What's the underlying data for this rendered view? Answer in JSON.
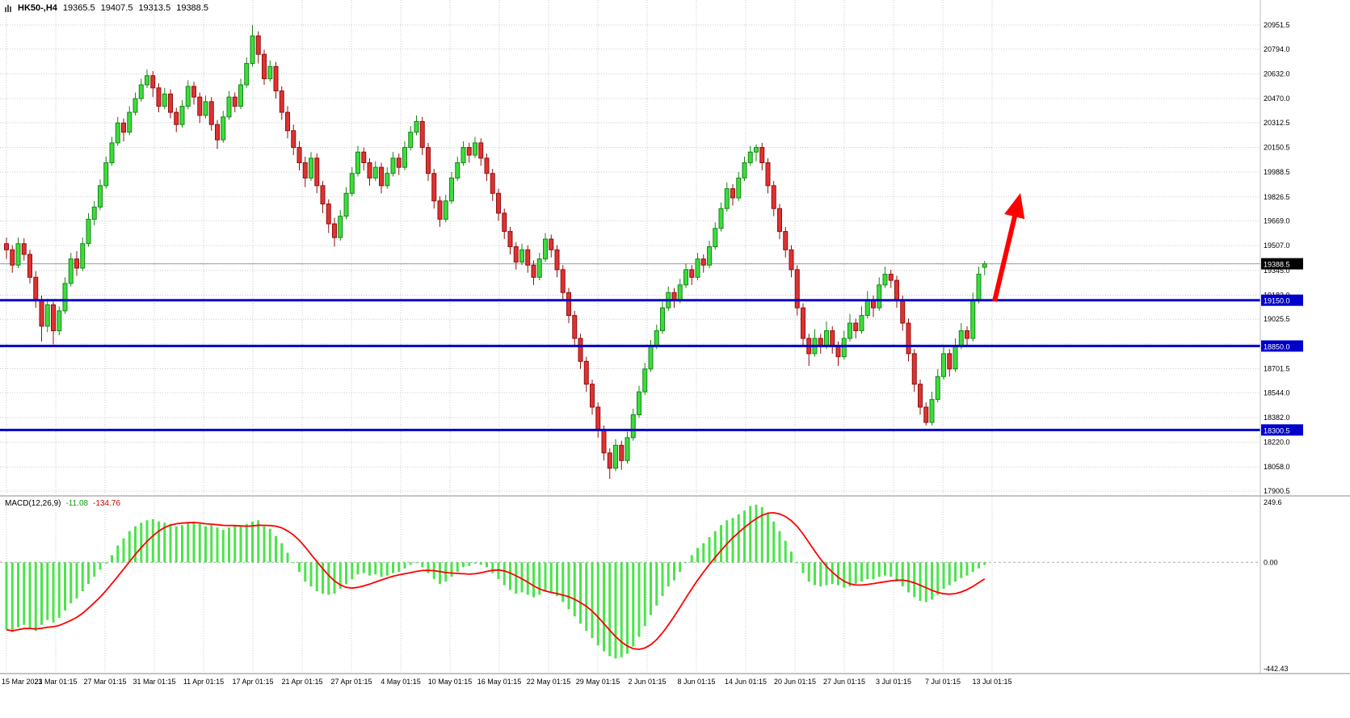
{
  "header": {
    "symbol": "HK50-,H4",
    "open": "19365.5",
    "high": "19407.5",
    "low": "19313.5",
    "close": "19388.5"
  },
  "macd_info": {
    "name": "MACD(12,26,9)",
    "main": "-11.08",
    "signal": "-134.76"
  },
  "colors": {
    "up": "#3ddc3d",
    "up_border": "#148714",
    "down": "#e03232",
    "down_border": "#8f0f0f",
    "hist": "#4be44b",
    "signal": "#ff0000",
    "hline": "#0000cc",
    "grid": "#c9c9c9",
    "tag_current_bg": "#000000",
    "tag_line_bg": "#0000cc",
    "arrow": "#ff0000",
    "current_price_line": "#999999"
  },
  "annotations": {
    "trend_arrow": {
      "direction": "up",
      "color": "#ff0000"
    }
  },
  "chart_data": [
    {
      "type": "candlestick",
      "symbol": "HK50-",
      "timeframe": "H4",
      "title": "HK50-,H4",
      "ylim": [
        17900.5,
        20951.5
      ],
      "y_ticks": [
        "20951.5",
        "20794.0",
        "20632.0",
        "20470.0",
        "20312.5",
        "20150.5",
        "19988.5",
        "19826.5",
        "19669.0",
        "19507.0",
        "19345.0",
        "19183.0",
        "19025.5",
        "18863.5",
        "18701.5",
        "18544.0",
        "18382.0",
        "18220.0",
        "18058.0",
        "17900.5"
      ],
      "x_labels": [
        "15 Mar 2023",
        "21 Mar 01:15",
        "27 Mar 01:15",
        "31 Mar 01:15",
        "11 Apr 01:15",
        "17 Apr 01:15",
        "21 Apr 01:15",
        "27 Apr 01:15",
        "4 May 01:15",
        "10 May 01:15",
        "16 May 01:15",
        "22 May 01:15",
        "29 May 01:15",
        "2 Jun 01:15",
        "8 Jun 01:15",
        "14 Jun 01:15",
        "20 Jun 01:15",
        "27 Jun 01:15",
        "3 Jul 01:15",
        "7 Jul 01:15",
        "13 Jul 01:15"
      ],
      "hlines": [
        {
          "price": 19150.0,
          "label": "19150.0"
        },
        {
          "price": 18850.0,
          "label": "18850.0"
        },
        {
          "price": 18300.5,
          "label": "18300.5"
        }
      ],
      "last_price": 19388.5,
      "last_label": "19388.5",
      "candles": [
        [
          19520,
          19560,
          19420,
          19480
        ],
        [
          19480,
          19510,
          19330,
          19380
        ],
        [
          19380,
          19560,
          19360,
          19520
        ],
        [
          19520,
          19555,
          19410,
          19450
        ],
        [
          19450,
          19480,
          19260,
          19300
        ],
        [
          19300,
          19340,
          19100,
          19150
        ],
        [
          19150,
          19180,
          18880,
          18980
        ],
        [
          18980,
          19160,
          18940,
          19120
        ],
        [
          19120,
          19140,
          18860,
          18950
        ],
        [
          18950,
          19110,
          18920,
          19080
        ],
        [
          19080,
          19300,
          19060,
          19260
        ],
        [
          19260,
          19460,
          19240,
          19420
        ],
        [
          19420,
          19470,
          19310,
          19360
        ],
        [
          19360,
          19560,
          19340,
          19520
        ],
        [
          19520,
          19720,
          19500,
          19680
        ],
        [
          19680,
          19800,
          19640,
          19760
        ],
        [
          19760,
          19940,
          19740,
          19900
        ],
        [
          19900,
          20090,
          19880,
          20050
        ],
        [
          20050,
          20220,
          20030,
          20180
        ],
        [
          20180,
          20350,
          20160,
          20310
        ],
        [
          20310,
          20340,
          20190,
          20250
        ],
        [
          20250,
          20420,
          20230,
          20380
        ],
        [
          20380,
          20510,
          20360,
          20470
        ],
        [
          20470,
          20600,
          20450,
          20560
        ],
        [
          20560,
          20660,
          20540,
          20620
        ],
        [
          20620,
          20650,
          20480,
          20540
        ],
        [
          20540,
          20570,
          20380,
          20420
        ],
        [
          20420,
          20540,
          20400,
          20500
        ],
        [
          20500,
          20530,
          20340,
          20380
        ],
        [
          20380,
          20410,
          20250,
          20300
        ],
        [
          20300,
          20460,
          20280,
          20420
        ],
        [
          20420,
          20590,
          20400,
          20550
        ],
        [
          20550,
          20580,
          20430,
          20480
        ],
        [
          20480,
          20510,
          20310,
          20360
        ],
        [
          20360,
          20490,
          20340,
          20450
        ],
        [
          20450,
          20480,
          20260,
          20300
        ],
        [
          20300,
          20330,
          20140,
          20200
        ],
        [
          20200,
          20390,
          20180,
          20350
        ],
        [
          20350,
          20520,
          20330,
          20480
        ],
        [
          20480,
          20510,
          20380,
          20420
        ],
        [
          20420,
          20600,
          20400,
          20560
        ],
        [
          20560,
          20740,
          20540,
          20700
        ],
        [
          20700,
          20951.5,
          20680,
          20880
        ],
        [
          20880,
          20910,
          20700,
          20760
        ],
        [
          20760,
          20790,
          20560,
          20600
        ],
        [
          20600,
          20720,
          20580,
          20680
        ],
        [
          20680,
          20710,
          20470,
          20520
        ],
        [
          20520,
          20550,
          20330,
          20380
        ],
        [
          20380,
          20420,
          20210,
          20260
        ],
        [
          20260,
          20300,
          20100,
          20150
        ],
        [
          20150,
          20190,
          20000,
          20050
        ],
        [
          20050,
          20090,
          19890,
          19950
        ],
        [
          19950,
          20120,
          19930,
          20080
        ],
        [
          20080,
          20110,
          19850,
          19900
        ],
        [
          19900,
          19930,
          19720,
          19780
        ],
        [
          19780,
          19810,
          19590,
          19650
        ],
        [
          19650,
          19690,
          19500,
          19560
        ],
        [
          19560,
          19740,
          19540,
          19700
        ],
        [
          19700,
          19890,
          19680,
          19850
        ],
        [
          19850,
          20020,
          19830,
          19980
        ],
        [
          19980,
          20160,
          19960,
          20120
        ],
        [
          20120,
          20150,
          20000,
          20050
        ],
        [
          20050,
          20080,
          19900,
          19950
        ],
        [
          19950,
          20060,
          19930,
          20020
        ],
        [
          20020,
          20050,
          19850,
          19900
        ],
        [
          19900,
          20020,
          19880,
          19980
        ],
        [
          19980,
          20120,
          19960,
          20080
        ],
        [
          20080,
          20110,
          19970,
          20020
        ],
        [
          20020,
          20190,
          20000,
          20150
        ],
        [
          20150,
          20290,
          20130,
          20250
        ],
        [
          20250,
          20360,
          20230,
          20320
        ],
        [
          20320,
          20350,
          20100,
          20150
        ],
        [
          20150,
          20180,
          19930,
          19980
        ],
        [
          19980,
          20010,
          19750,
          19800
        ],
        [
          19800,
          19830,
          19630,
          19680
        ],
        [
          19680,
          19840,
          19660,
          19800
        ],
        [
          19800,
          19990,
          19780,
          19950
        ],
        [
          19950,
          20090,
          19930,
          20050
        ],
        [
          20050,
          20190,
          20030,
          20150
        ],
        [
          20150,
          20180,
          20050,
          20100
        ],
        [
          20100,
          20220,
          20080,
          20180
        ],
        [
          20180,
          20210,
          20030,
          20080
        ],
        [
          20080,
          20110,
          19930,
          19980
        ],
        [
          19980,
          20010,
          19800,
          19850
        ],
        [
          19850,
          19880,
          19670,
          19720
        ],
        [
          19720,
          19750,
          19550,
          19600
        ],
        [
          19600,
          19630,
          19450,
          19500
        ],
        [
          19500,
          19530,
          19350,
          19400
        ],
        [
          19400,
          19520,
          19380,
          19480
        ],
        [
          19480,
          19510,
          19330,
          19380
        ],
        [
          19380,
          19410,
          19250,
          19300
        ],
        [
          19300,
          19460,
          19280,
          19420
        ],
        [
          19420,
          19590,
          19400,
          19550
        ],
        [
          19550,
          19580,
          19430,
          19480
        ],
        [
          19480,
          19510,
          19300,
          19350
        ],
        [
          19350,
          19380,
          19150,
          19200
        ],
        [
          19200,
          19230,
          19000,
          19050
        ],
        [
          19050,
          19080,
          18850,
          18900
        ],
        [
          18900,
          18930,
          18700,
          18750
        ],
        [
          18750,
          18780,
          18550,
          18600
        ],
        [
          18600,
          18630,
          18400,
          18450
        ],
        [
          18450,
          18480,
          18250,
          18300
        ],
        [
          18300,
          18330,
          18100,
          18150
        ],
        [
          18150,
          18180,
          17980,
          18050
        ],
        [
          18050,
          18240,
          18030,
          18200
        ],
        [
          18200,
          18230,
          18040,
          18100
        ],
        [
          18100,
          18290,
          18080,
          18250
        ],
        [
          18250,
          18440,
          18230,
          18400
        ],
        [
          18400,
          18590,
          18380,
          18550
        ],
        [
          18550,
          18740,
          18530,
          18700
        ],
        [
          18700,
          18890,
          18680,
          18850
        ],
        [
          18850,
          18990,
          18830,
          18950
        ],
        [
          18950,
          19140,
          18930,
          19100
        ],
        [
          19100,
          19240,
          19080,
          19200
        ],
        [
          19200,
          19230,
          19100,
          19150
        ],
        [
          19150,
          19290,
          19130,
          19250
        ],
        [
          19250,
          19390,
          19230,
          19350
        ],
        [
          19350,
          19380,
          19250,
          19300
        ],
        [
          19300,
          19460,
          19280,
          19420
        ],
        [
          19420,
          19450,
          19330,
          19380
        ],
        [
          19380,
          19540,
          19360,
          19500
        ],
        [
          19500,
          19660,
          19480,
          19620
        ],
        [
          19620,
          19790,
          19600,
          19750
        ],
        [
          19750,
          19920,
          19730,
          19880
        ],
        [
          19880,
          19910,
          19770,
          19820
        ],
        [
          19820,
          19990,
          19800,
          19950
        ],
        [
          19950,
          20090,
          19930,
          20050
        ],
        [
          20050,
          20160,
          20030,
          20120
        ],
        [
          20120,
          20170,
          20060,
          20150
        ],
        [
          20150,
          20180,
          20000,
          20050
        ],
        [
          20050,
          20080,
          19850,
          19900
        ],
        [
          19900,
          19930,
          19700,
          19750
        ],
        [
          19750,
          19780,
          19550,
          19600
        ],
        [
          19600,
          19630,
          19430,
          19480
        ],
        [
          19480,
          19510,
          19300,
          19350
        ],
        [
          19350,
          19380,
          19050,
          19100
        ],
        [
          19100,
          19130,
          18850,
          18900
        ],
        [
          18900,
          18930,
          18720,
          18800
        ],
        [
          18800,
          18960,
          18780,
          18900
        ],
        [
          18900,
          18930,
          18800,
          18850
        ],
        [
          18850,
          19010,
          18830,
          18950
        ],
        [
          18950,
          18980,
          18800,
          18850
        ],
        [
          18850,
          18880,
          18720,
          18780
        ],
        [
          18780,
          18950,
          18760,
          18900
        ],
        [
          18900,
          19060,
          18880,
          19000
        ],
        [
          19000,
          19030,
          18900,
          18950
        ],
        [
          18950,
          19110,
          18930,
          19050
        ],
        [
          19050,
          19210,
          19030,
          19150
        ],
        [
          19150,
          19180,
          19040,
          19100
        ],
        [
          19100,
          19300,
          19080,
          19250
        ],
        [
          19250,
          19370,
          19230,
          19320
        ],
        [
          19320,
          19350,
          19230,
          19280
        ],
        [
          19280,
          19310,
          19100,
          19150
        ],
        [
          19150,
          19180,
          18950,
          19000
        ],
        [
          19000,
          19030,
          18750,
          18800
        ],
        [
          18800,
          18830,
          18550,
          18600
        ],
        [
          18600,
          18630,
          18400,
          18450
        ],
        [
          18450,
          18480,
          18330,
          18350
        ],
        [
          18350,
          18550,
          18330,
          18500
        ],
        [
          18500,
          18700,
          18480,
          18650
        ],
        [
          18650,
          18850,
          18630,
          18800
        ],
        [
          18800,
          18830,
          18650,
          18700
        ],
        [
          18700,
          18900,
          18680,
          18850
        ],
        [
          18850,
          19000,
          18830,
          18950
        ],
        [
          18950,
          18980,
          18850,
          18900
        ],
        [
          18900,
          19200,
          18880,
          19150
        ],
        [
          19150,
          19370,
          19130,
          19320
        ],
        [
          19365.5,
          19407.5,
          19313.5,
          19388.5
        ]
      ]
    },
    {
      "type": "bar",
      "name": "MACD(12,26,9)",
      "ylim": [
        -442.43,
        249.6
      ],
      "y_ticks": [
        {
          "v": 249.6,
          "label": "249.6"
        },
        {
          "v": 0,
          "label": "0.00"
        },
        {
          "v": -442.43,
          "label": "-442.43"
        }
      ],
      "main_value": -11.08,
      "signal_value": -134.76,
      "signal_note": "red line = 9-bar moving average of histogram",
      "values": [
        -280,
        -290,
        -270,
        -260,
        -275,
        -285,
        -260,
        -240,
        -250,
        -230,
        -200,
        -170,
        -150,
        -120,
        -90,
        -60,
        -30,
        -5,
        30,
        70,
        100,
        130,
        150,
        165,
        175,
        180,
        170,
        165,
        160,
        150,
        155,
        165,
        170,
        160,
        150,
        155,
        145,
        135,
        145,
        155,
        150,
        160,
        170,
        175,
        150,
        140,
        110,
        80,
        40,
        0,
        -40,
        -80,
        -100,
        -120,
        -130,
        -135,
        -130,
        -110,
        -90,
        -70,
        -50,
        -45,
        -55,
        -50,
        -60,
        -55,
        -45,
        -40,
        -25,
        -10,
        0,
        -20,
        -45,
        -70,
        -90,
        -80,
        -60,
        -40,
        -20,
        -15,
        -5,
        -10,
        -20,
        -45,
        -70,
        -95,
        -115,
        -130,
        -125,
        -135,
        -145,
        -135,
        -120,
        -125,
        -140,
        -165,
        -195,
        -225,
        -255,
        -285,
        -315,
        -345,
        -370,
        -390,
        -400,
        -395,
        -380,
        -350,
        -310,
        -265,
        -220,
        -180,
        -140,
        -100,
        -75,
        -40,
        0,
        30,
        60,
        80,
        105,
        130,
        155,
        175,
        185,
        200,
        215,
        235,
        240,
        230,
        205,
        170,
        130,
        90,
        45,
        0,
        -45,
        -80,
        -95,
        -100,
        -95,
        -90,
        -95,
        -105,
        -100,
        -90,
        -80,
        -70,
        -70,
        -60,
        -55,
        -60,
        -80,
        -100,
        -125,
        -145,
        -160,
        -165,
        -155,
        -135,
        -110,
        -95,
        -80,
        -65,
        -55,
        -40,
        -25,
        -11.08
      ]
    }
  ]
}
